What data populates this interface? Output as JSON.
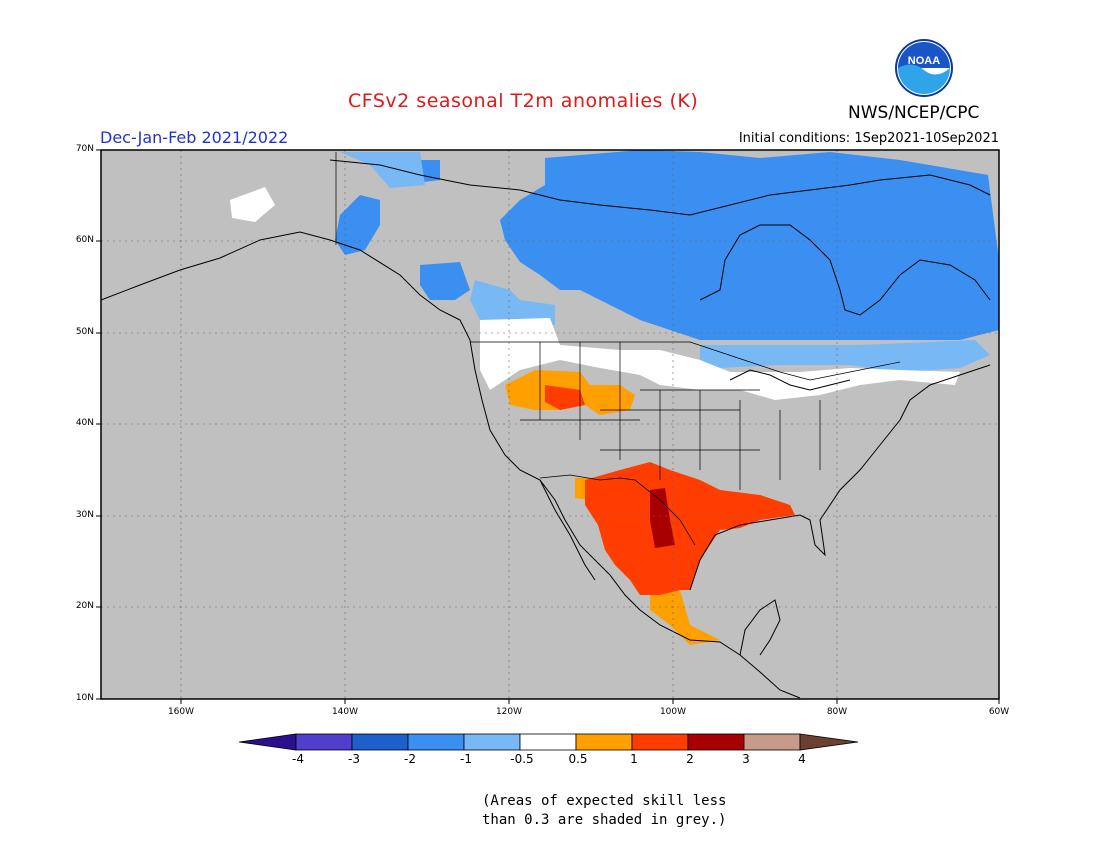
{
  "title": "CFSv2 seasonal T2m anomalies (K)",
  "season": "Dec-Jan-Feb 2021/2022",
  "initial_conditions": "Initial conditions: 1Sep2021-10Sep2021",
  "agency": "NWS/NCEP/CPC",
  "logo_text": "NOAA",
  "lat_labels": [
    "70N",
    "60N",
    "50N",
    "40N",
    "30N",
    "20N",
    "10N"
  ],
  "lon_labels": [
    "160W",
    "140W",
    "120W",
    "100W",
    "80W",
    "60W"
  ],
  "colorbar": {
    "labels": [
      "-4",
      "-3",
      "-2",
      "-1",
      "-0.5",
      "0.5",
      "1",
      "2",
      "3",
      "4"
    ],
    "colors": [
      "#2a0f8f",
      "#4f3fcc",
      "#1f5fcc",
      "#3b8ff0",
      "#78b8f5",
      "#ffffff",
      "#ffa000",
      "#ff3d00",
      "#a80000",
      "#c89a8a",
      "#6b4030"
    ]
  },
  "note_line1": "(Areas of expected skill less",
  "note_line2": "than 0.3 are shaded in grey.)",
  "colors": {
    "grey_no_skill": "#c0c0c0",
    "title_red": "#e01818",
    "season_blue": "#2233cc"
  },
  "icon_names": [
    "noaa-logo-icon"
  ]
}
